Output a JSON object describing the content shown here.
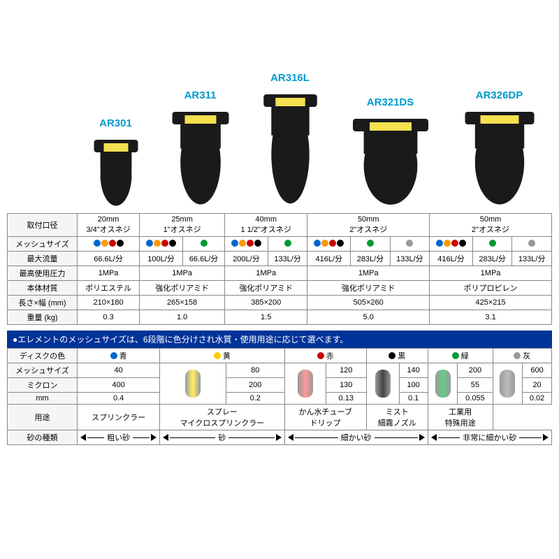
{
  "products": [
    {
      "name": "AR301",
      "width": 70,
      "height": 110
    },
    {
      "name": "AR311",
      "width": 90,
      "height": 150
    },
    {
      "name": "AR316L",
      "width": 85,
      "height": 175
    },
    {
      "name": "AR321DS",
      "width": 120,
      "height": 140
    },
    {
      "name": "AR326DP",
      "width": 110,
      "height": 150
    }
  ],
  "colors": {
    "blue": "#0066cc",
    "orange": "#ff9900",
    "red": "#cc0000",
    "black": "#000000",
    "green": "#009933",
    "gray": "#999999"
  },
  "spec_rows": [
    {
      "label": "取付口径",
      "cells": [
        {
          "lines": [
            "20mm",
            "3/4\"オスネジ"
          ]
        },
        {
          "lines": [
            "25mm",
            "1\"オスネジ"
          ]
        },
        {
          "lines": [
            "40mm",
            "1 1/2\"オスネジ"
          ]
        },
        {
          "lines": [
            "50mm",
            "2\"オスネジ"
          ]
        },
        {
          "lines": [
            "50mm",
            "2\"オスネジ"
          ]
        }
      ]
    },
    {
      "label": "メッシュサイズ",
      "type": "dots",
      "cells": [
        [
          [
            "blue",
            "orange",
            "red",
            "black"
          ]
        ],
        [
          [
            "blue",
            "orange",
            "red",
            "black"
          ],
          [
            "green"
          ]
        ],
        [
          [
            "blue",
            "orange",
            "red",
            "black"
          ],
          [
            "green"
          ]
        ],
        [
          [
            "blue",
            "orange",
            "red",
            "black"
          ],
          [
            "green"
          ],
          [
            "gray"
          ]
        ],
        [
          [
            "blue",
            "orange",
            "red",
            "black"
          ],
          [
            "green"
          ],
          [
            "gray"
          ]
        ]
      ]
    },
    {
      "label": "最大流量",
      "type": "flow",
      "cells": [
        [
          "66.6L/分"
        ],
        [
          "100L/分",
          "66.6L/分"
        ],
        [
          "200L/分",
          "133L/分"
        ],
        [
          "416L/分",
          "283L/分",
          "133L/分"
        ],
        [
          "416L/分",
          "283L/分",
          "133L/分"
        ]
      ]
    },
    {
      "label": "最高使用圧力",
      "cells": [
        [
          "1MPa"
        ],
        [
          "1MPa"
        ],
        [
          "1MPa"
        ],
        [
          "1MPa"
        ],
        [
          "1MPa"
        ]
      ]
    },
    {
      "label": "本体材質",
      "cells": [
        [
          "ポリエステル"
        ],
        [
          "強化ポリアミド"
        ],
        [
          "強化ポリアミド"
        ],
        [
          "強化ポリアミド"
        ],
        [
          "ポリプロピレン"
        ]
      ]
    },
    {
      "label": "長さ×幅 (mm)",
      "cells": [
        [
          "210×180"
        ],
        [
          "265×158"
        ],
        [
          "385×200"
        ],
        [
          "505×260"
        ],
        [
          "425×215"
        ]
      ]
    },
    {
      "label": "重量 (kg)",
      "cells": [
        [
          "0.3"
        ],
        [
          "1.0"
        ],
        [
          "1.5"
        ],
        [
          "5.0"
        ],
        [
          "3.1"
        ]
      ]
    }
  ],
  "banner": "●エレメントのメッシュサイズは、6段階に色分けされ水質・使用用途に応じて選べます。",
  "disc_colors": [
    {
      "label": "青",
      "color": "#0066cc",
      "element": "#88ccff"
    },
    {
      "label": "黄",
      "color": "#ffcc00",
      "element": "#ffee66"
    },
    {
      "label": "赤",
      "color": "#cc0000",
      "element": "#ff9999"
    },
    {
      "label": "黒",
      "color": "#000000",
      "element": "#444444"
    },
    {
      "label": "緑",
      "color": "#009933",
      "element": "#66cc88"
    },
    {
      "label": "灰",
      "color": "#999999",
      "element": "#bbbbbb"
    }
  ],
  "mesh_rows": [
    {
      "label": "メッシュサイズ",
      "vals": [
        "40",
        "80",
        "120",
        "140",
        "200",
        "600"
      ]
    },
    {
      "label": "ミクロン",
      "vals": [
        "400",
        "200",
        "130",
        "100",
        "55",
        "20"
      ]
    },
    {
      "label": "mm",
      "vals": [
        "0.4",
        "0.2",
        "0.13",
        "0.1",
        "0.055",
        "0.02"
      ]
    }
  ],
  "usage": {
    "label": "用途",
    "vals": [
      "スプリンクラー",
      "スプレー\nマイクロスプリンクラー",
      "かん水チューブ\nドリップ",
      "ミスト\n細霧ノズル",
      "",
      "工業用\n特殊用途"
    ]
  },
  "sand": {
    "label": "砂の種類",
    "vals": [
      "粗い砂",
      "砂",
      "細かい砂",
      "",
      "非常に細かい砂",
      ""
    ]
  }
}
